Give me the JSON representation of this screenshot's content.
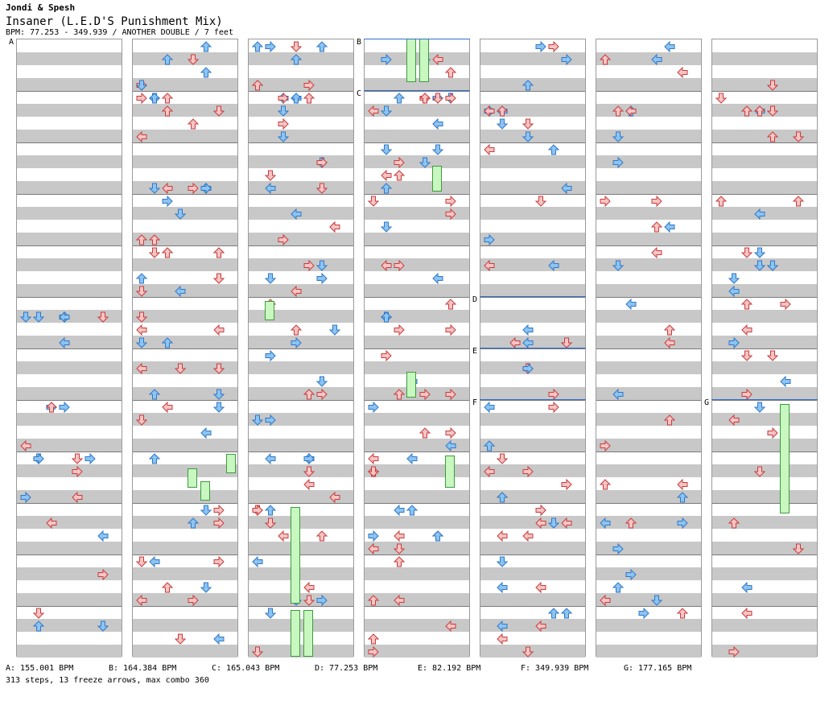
{
  "header": {
    "artist": "Jondi & Spesh",
    "title": "Insaner (L.E.D'S Punishment Mix)",
    "meta": "BPM: 77.253 - 349.939 / ANOTHER DOUBLE / 7 feet"
  },
  "section_labels": [
    "A",
    "B",
    "C",
    "D",
    "E",
    "F",
    "G"
  ],
  "legend": [
    "A: 155.001 BPM",
    "B: 164.384 BPM",
    "C: 165.043 BPM",
    "D: 77.253 BPM",
    "E: 82.192 BPM",
    "F: 349.939 BPM",
    "G: 177.165 BPM"
  ],
  "summary": "313 steps, 13 freeze arrows, max combo 360",
  "colors": {
    "blue_fill": "#8cc4f2",
    "blue_stroke": "#2f78c8",
    "red_fill": "#f7c4c4",
    "red_stroke": "#c83c3c",
    "freeze_fill": "#c8f7c0",
    "freeze_stroke": "#3c9c3c",
    "stripe": "#c8c8c8",
    "section_line": "#3070d0"
  }
}
